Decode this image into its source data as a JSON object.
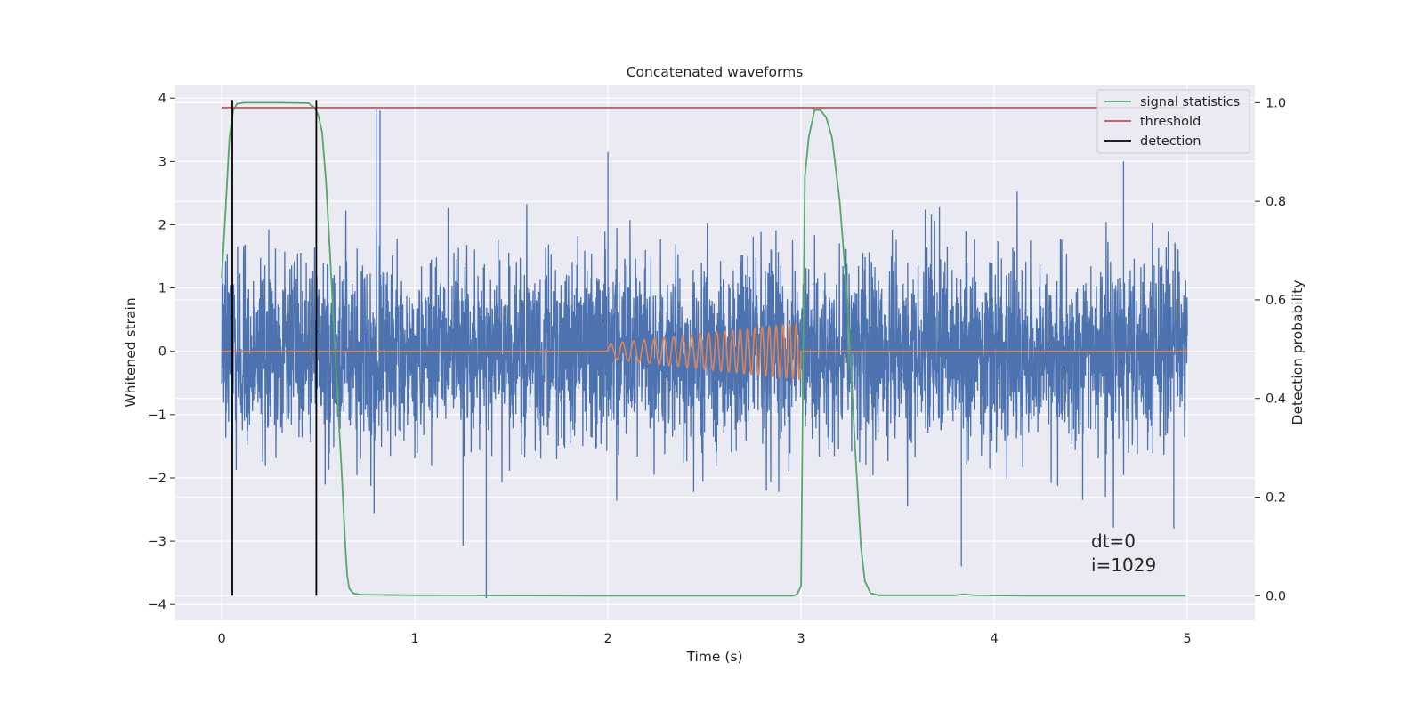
{
  "chart_data": {
    "type": "line",
    "title": "Concatenated waveforms",
    "xlabel": "Time (s)",
    "ylabel": "Whitened strain",
    "ylabel_right": "Detection probability",
    "xlim": [
      -0.24,
      5.35
    ],
    "ylim": [
      -4.25,
      4.2
    ],
    "ylim_right": [
      -0.05,
      1.035
    ],
    "x_ticks": [
      0,
      1,
      2,
      3,
      4,
      5
    ],
    "y_ticks": [
      -4,
      -3,
      -2,
      -1,
      0,
      1,
      2,
      3,
      4
    ],
    "y_ticks_right": [
      0.0,
      0.2,
      0.4,
      0.6,
      0.8,
      1.0
    ],
    "grid": true,
    "legend_position": "top-right",
    "colors": {
      "strain": "#4c72b0",
      "template": "#dd8452",
      "signal_statistics": "#55a868",
      "threshold": "#c44e52",
      "detection": "#000000",
      "axes_bg": "#eaeaf2",
      "grid": "#ffffff"
    },
    "series": [
      {
        "name": "",
        "kind": "whitened-strain-noise",
        "axis": "left",
        "x_range": [
          0,
          5
        ],
        "noise_envelope": [
          [
            0.0,
            1.3
          ],
          [
            0.1,
            2.3
          ],
          [
            0.3,
            2.9
          ],
          [
            0.5,
            2.5
          ],
          [
            0.8,
            3.8
          ],
          [
            1.0,
            2.3
          ],
          [
            1.5,
            2.6
          ],
          [
            2.0,
            2.6
          ],
          [
            2.5,
            2.8
          ],
          [
            3.0,
            2.6
          ],
          [
            3.5,
            2.8
          ],
          [
            4.0,
            2.8
          ],
          [
            4.5,
            2.9
          ],
          [
            5.0,
            2.5
          ]
        ],
        "spikes": [
          {
            "x": 0.8,
            "y": 3.82
          },
          {
            "x": 0.82,
            "y": 3.8
          },
          {
            "x": 1.37,
            "y": -3.9
          },
          {
            "x": 2.0,
            "y": 3.15
          },
          {
            "x": 3.83,
            "y": -3.4
          },
          {
            "x": 1.25,
            "y": -3.07
          },
          {
            "x": 4.93,
            "y": -2.8
          },
          {
            "x": 4.67,
            "y": 3.0
          }
        ]
      },
      {
        "name": "",
        "kind": "injected-chirp",
        "axis": "left",
        "x_start": 2.0,
        "x_end": 3.0,
        "amp_start": 0.12,
        "amp_end": 0.45,
        "freq_start": 16,
        "freq_end": 30
      },
      {
        "name": "signal statistics",
        "axis": "right",
        "points": [
          [
            0.0,
            0.645
          ],
          [
            0.02,
            0.78
          ],
          [
            0.04,
            0.93
          ],
          [
            0.06,
            0.985
          ],
          [
            0.08,
            0.998
          ],
          [
            0.12,
            1.0
          ],
          [
            0.3,
            1.0
          ],
          [
            0.45,
            0.999
          ],
          [
            0.48,
            0.99
          ],
          [
            0.5,
            0.975
          ],
          [
            0.52,
            0.94
          ],
          [
            0.54,
            0.84
          ],
          [
            0.56,
            0.7
          ],
          [
            0.58,
            0.55
          ],
          [
            0.6,
            0.4
          ],
          [
            0.62,
            0.26
          ],
          [
            0.64,
            0.1
          ],
          [
            0.65,
            0.04
          ],
          [
            0.66,
            0.015
          ],
          [
            0.68,
            0.005
          ],
          [
            0.72,
            0.002
          ],
          [
            1.0,
            0.001
          ],
          [
            2.0,
            0.0
          ],
          [
            2.96,
            0.0
          ],
          [
            2.98,
            0.003
          ],
          [
            3.0,
            0.02
          ],
          [
            3.01,
            0.45
          ],
          [
            3.02,
            0.85
          ],
          [
            3.04,
            0.93
          ],
          [
            3.07,
            0.985
          ],
          [
            3.1,
            0.985
          ],
          [
            3.13,
            0.97
          ],
          [
            3.16,
            0.93
          ],
          [
            3.2,
            0.8
          ],
          [
            3.24,
            0.6
          ],
          [
            3.28,
            0.3
          ],
          [
            3.31,
            0.1
          ],
          [
            3.33,
            0.03
          ],
          [
            3.36,
            0.005
          ],
          [
            3.4,
            0.001
          ],
          [
            3.8,
            0.001
          ],
          [
            3.84,
            0.003
          ],
          [
            3.9,
            0.001
          ],
          [
            4.2,
            0.0
          ],
          [
            4.99,
            0.0
          ]
        ]
      },
      {
        "name": "threshold",
        "axis": "right",
        "points": [
          [
            0.0,
            0.99
          ],
          [
            4.99,
            0.99
          ]
        ]
      },
      {
        "name": "detection",
        "axis": "right",
        "vlines": [
          0.055,
          0.49
        ],
        "y_range": [
          0.0,
          1.0
        ]
      }
    ],
    "legend": [
      "signal statistics",
      "threshold",
      "detection"
    ],
    "annotations": {
      "dt_label": "dt=0",
      "i_label": "i=1029"
    }
  }
}
